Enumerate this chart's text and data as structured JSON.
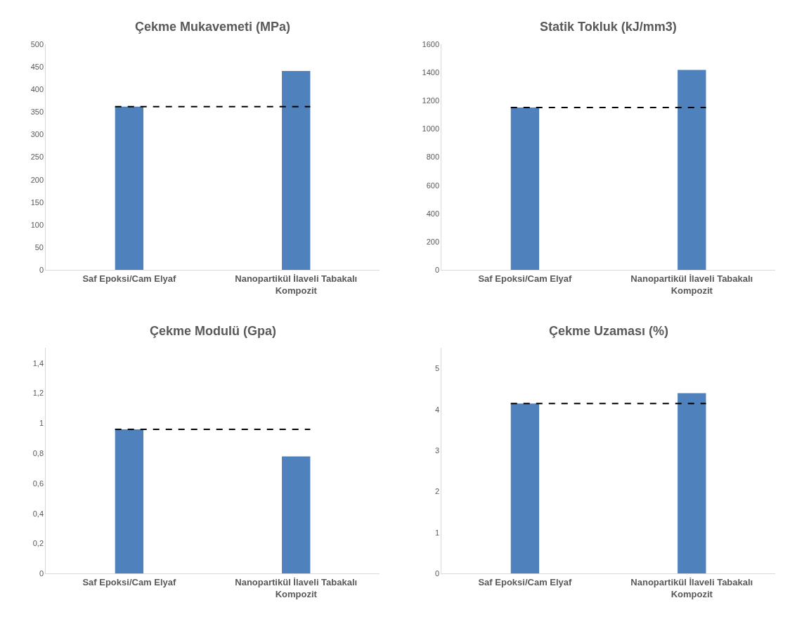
{
  "chart_data": [
    {
      "type": "bar",
      "title": "Çekme Mukavemeti (MPa)",
      "categories": [
        "Saf Epoksi/Cam Elyaf",
        "Nanopartikül İlaveli Tabakalı Kompozit"
      ],
      "values": [
        362,
        441
      ],
      "color": "#4f81bd",
      "ylim": [
        0,
        500
      ],
      "yticks": [
        0,
        50,
        100,
        150,
        200,
        250,
        300,
        350,
        400,
        450,
        500
      ],
      "ref_lines": [
        {
          "axis": "y",
          "value": 362,
          "color": "#000000",
          "line_style": "dashed"
        }
      ]
    },
    {
      "type": "bar",
      "title": "Statik Tokluk (kJ/mm3)",
      "categories": [
        "Saf Epoksi/Cam Elyaf",
        "Nanopartikül İlaveli Tabakalı Kompozit"
      ],
      "values": [
        1152,
        1418
      ],
      "color": "#4f81bd",
      "ylim": [
        0,
        1600
      ],
      "yticks": [
        0,
        200,
        400,
        600,
        800,
        1000,
        1200,
        1400,
        1600
      ],
      "ref_lines": [
        {
          "axis": "y",
          "value": 1152,
          "color": "#000000",
          "line_style": "dashed"
        }
      ]
    },
    {
      "type": "bar",
      "title": "Çekme Modulü (Gpa)",
      "categories": [
        "Saf Epoksi/Cam Elyaf",
        "Nanopartikül İlaveli Tabakalı Kompozit"
      ],
      "values": [
        0.96,
        0.78
      ],
      "color": "#4f81bd",
      "ylim": [
        0,
        1.5
      ],
      "yticks": [
        0,
        {
          "value": 0.2,
          "label": "0,2"
        },
        {
          "value": 0.4,
          "label": "0,4"
        },
        {
          "value": 0.6,
          "label": "0,6"
        },
        {
          "value": 0.8,
          "label": "0,8"
        },
        1,
        {
          "value": 1.2,
          "label": "1,2"
        },
        {
          "value": 1.4,
          "label": "1,4"
        }
      ],
      "ref_lines": [
        {
          "axis": "y",
          "value": 0.96,
          "color": "#000000",
          "line_style": "dashed"
        }
      ]
    },
    {
      "type": "bar",
      "title": "Çekme Uzaması (%)",
      "categories": [
        "Saf Epoksi/Cam Elyaf",
        "Nanopartikül İlaveli Tabakalı Kompozit"
      ],
      "values": [
        4.15,
        4.4
      ],
      "color": "#4f81bd",
      "ylim": [
        0,
        5.5
      ],
      "yticks": [
        0,
        1,
        2,
        3,
        4,
        5
      ],
      "ref_lines": [
        {
          "axis": "y",
          "value": 4.15,
          "color": "#000000",
          "line_style": "dashed"
        }
      ]
    }
  ]
}
